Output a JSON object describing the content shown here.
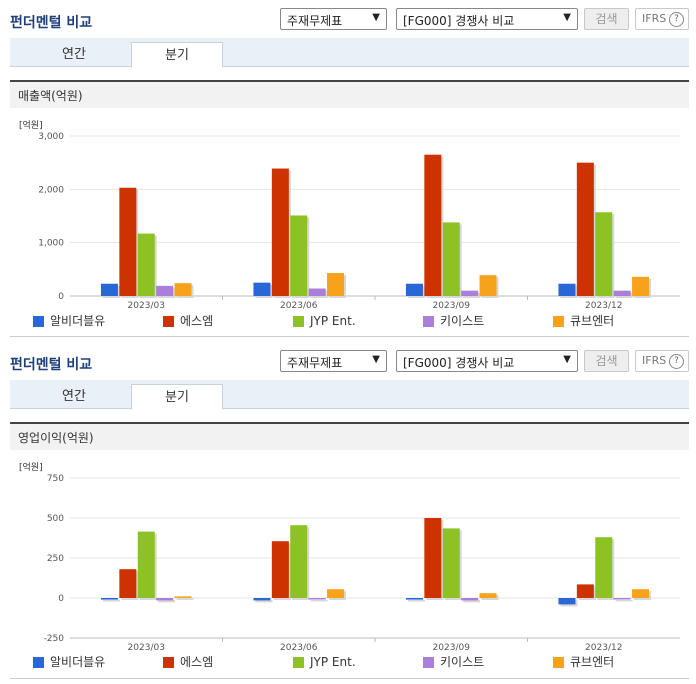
{
  "sections": [
    {
      "title": "펀더멘털 비교",
      "select_item": "주재무제표",
      "select_group": "[FG000] 경쟁사 비교",
      "search_label": "검색",
      "ifrs_label": "IFRS",
      "ifrs_help": "?",
      "tabs": [
        "연간",
        "분기"
      ],
      "active_tab": "분기",
      "metric_label": "매출액(억원)"
    },
    {
      "title": "펀더멘털 비교",
      "select_item": "주재무제표",
      "select_group": "[FG000] 경쟁사 비교",
      "search_label": "검색",
      "ifrs_label": "IFRS",
      "ifrs_help": "?",
      "tabs": [
        "연간",
        "분기"
      ],
      "active_tab": "분기",
      "metric_label": "영업이익(억원)"
    }
  ],
  "legend": [
    {
      "name": "알비더블유",
      "color": "#2a67d6"
    },
    {
      "name": "에스엠",
      "color": "#cc3300"
    },
    {
      "name": "JYP Ent.",
      "color": "#8cc224"
    },
    {
      "name": "키이스트",
      "color": "#a97fd9"
    },
    {
      "name": "큐브엔터",
      "color": "#f7a21b"
    }
  ],
  "chart_data": [
    {
      "type": "bar",
      "unit_label": "[억원]",
      "categories": [
        "2023/03",
        "2023/06",
        "2023/09",
        "2023/12"
      ],
      "ylim": [
        0,
        3000
      ],
      "yticks": [
        "0",
        "1,000",
        "2,000",
        "3,000"
      ],
      "ytick_values": [
        0,
        1000,
        2000,
        3000
      ],
      "series": [
        {
          "name": "알비더블유",
          "values": [
            230,
            250,
            230,
            230
          ]
        },
        {
          "name": "에스엠",
          "values": [
            2030,
            2390,
            2650,
            2500
          ]
        },
        {
          "name": "JYP Ent.",
          "values": [
            1170,
            1510,
            1380,
            1570
          ]
        },
        {
          "name": "키이스트",
          "values": [
            190,
            140,
            100,
            100
          ]
        },
        {
          "name": "큐브엔터",
          "values": [
            240,
            430,
            390,
            360
          ]
        }
      ]
    },
    {
      "type": "bar",
      "unit_label": "[억원]",
      "categories": [
        "2023/03",
        "2023/06",
        "2023/09",
        "2023/12"
      ],
      "ylim": [
        -250,
        750
      ],
      "yticks": [
        "-250",
        "0",
        "250",
        "500",
        "750"
      ],
      "ytick_values": [
        -250,
        0,
        250,
        500,
        750
      ],
      "series": [
        {
          "name": "알비더블유",
          "values": [
            -10,
            -15,
            -10,
            -40
          ]
        },
        {
          "name": "에스엠",
          "values": [
            180,
            355,
            500,
            85
          ]
        },
        {
          "name": "JYP Ent.",
          "values": [
            415,
            455,
            435,
            380
          ]
        },
        {
          "name": "키이스트",
          "values": [
            -15,
            0,
            -15,
            0
          ]
        },
        {
          "name": "큐브엔터",
          "values": [
            10,
            55,
            30,
            55
          ]
        }
      ]
    }
  ]
}
